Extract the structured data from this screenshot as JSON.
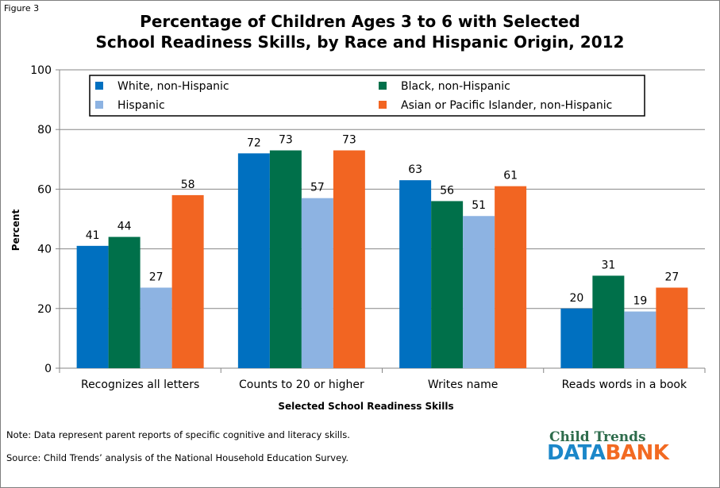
{
  "figure_label": "Figure 3",
  "title_lines": [
    "Percentage of Children Ages 3 to 6 with Selected",
    "School Readiness Skills, by Race and Hispanic Origin, 2012"
  ],
  "chart_data": {
    "type": "bar",
    "categories": [
      "Recognizes all letters",
      "Counts to 20 or higher",
      "Writes name",
      "Reads words in a book"
    ],
    "series": [
      {
        "name": "White, non-Hispanic",
        "color": "#0070c0",
        "values": [
          41,
          72,
          63,
          20
        ]
      },
      {
        "name": "Black, non-Hispanic",
        "color": "#00704a",
        "values": [
          44,
          73,
          56,
          31
        ]
      },
      {
        "name": "Hispanic",
        "color": "#8db3e2",
        "values": [
          27,
          57,
          51,
          19
        ]
      },
      {
        "name": "Asian or Pacific Islander, non-Hispanic",
        "color": "#f26522",
        "values": [
          58,
          73,
          61,
          27
        ]
      }
    ],
    "data_labels": [
      [
        "41",
        "72",
        "63",
        "20"
      ],
      [
        "44",
        "73",
        "56",
        "31"
      ],
      [
        "27",
        "57",
        "51",
        "19"
      ],
      [
        "58",
        "73",
        "61",
        "27"
      ]
    ],
    "xlabel": "Selected School  Readiness Skills",
    "ylabel": "Percent",
    "ylim": [
      0,
      100
    ],
    "yticks": [
      "0",
      "20",
      "40",
      "60",
      "80",
      "100"
    ],
    "grid": true,
    "legend_position": "top"
  },
  "note": "Note: Data represent parent reports of specific cognitive and literacy skills.",
  "source": "Source: Child Trends’ analysis of the National Household Education Survey.",
  "logo": {
    "top": "Child Trends",
    "bottom_part1": "DATA",
    "bottom_part2": "BANK"
  }
}
